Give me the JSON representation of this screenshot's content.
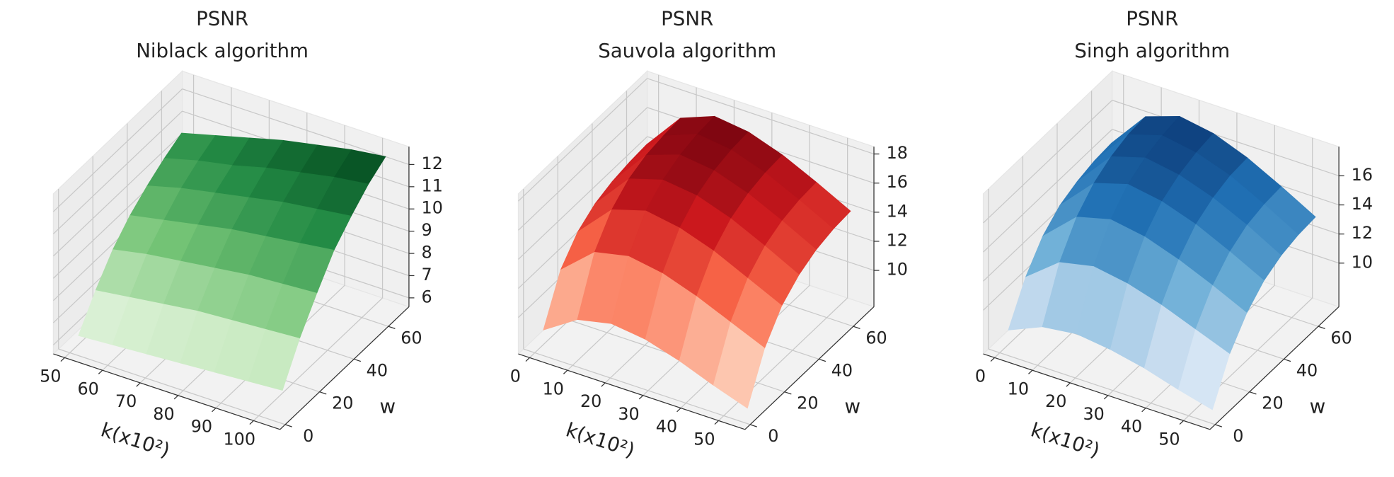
{
  "chart_data": [
    {
      "type": "surface",
      "title": "PSNR",
      "subtitle": "Niblack algorithm",
      "xlabel": "k(x10²)",
      "ylabel": "w",
      "x": [
        50,
        59,
        68,
        77,
        86,
        95,
        104
      ],
      "y": [
        5,
        15,
        25,
        35,
        45,
        55,
        65
      ],
      "z": [
        [
          6.0,
          6.1,
          6.2,
          6.3,
          6.4,
          6.5,
          6.6
        ],
        [
          7.3,
          7.5,
          7.7,
          7.9,
          8.0,
          8.1,
          8.2
        ],
        [
          8.4,
          8.7,
          8.9,
          9.1,
          9.3,
          9.4,
          9.5
        ],
        [
          9.2,
          9.5,
          9.8,
          10.1,
          10.3,
          10.5,
          10.7
        ],
        [
          9.8,
          10.2,
          10.5,
          10.8,
          11.1,
          11.3,
          11.5
        ],
        [
          10.3,
          10.7,
          11.0,
          11.4,
          11.7,
          12.0,
          12.2
        ],
        [
          10.7,
          11.1,
          11.5,
          11.9,
          12.2,
          12.5,
          12.7
        ]
      ],
      "xlim": [
        47,
        107
      ],
      "ylim": [
        -3,
        72
      ],
      "zlim": [
        5.6,
        12.8
      ],
      "xticks": [
        50,
        60,
        70,
        80,
        90,
        100
      ],
      "yticks": [
        0,
        20,
        40,
        60
      ],
      "zticks": [
        6,
        7,
        8,
        9,
        10,
        11,
        12
      ],
      "colormap": [
        "#f7fcf5",
        "#c7e9c0",
        "#74c476",
        "#238b45",
        "#00441b"
      ]
    },
    {
      "type": "surface",
      "title": "PSNR",
      "subtitle": "Sauvola algorithm",
      "xlabel": "k(x10²)",
      "ylabel": "w",
      "x": [
        0,
        9,
        18,
        27,
        36,
        45,
        54
      ],
      "y": [
        5,
        15,
        25,
        35,
        45,
        55,
        65
      ],
      "z": [
        [
          8.5,
          10.0,
          10.5,
          10.2,
          9.5,
          8.6,
          7.8
        ],
        [
          11.5,
          13.5,
          14.0,
          13.6,
          12.8,
          11.8,
          10.8
        ],
        [
          13.0,
          15.3,
          16.0,
          15.6,
          14.8,
          13.7,
          12.6
        ],
        [
          13.8,
          16.3,
          17.0,
          16.7,
          15.9,
          14.8,
          13.6
        ],
        [
          14.2,
          16.8,
          17.6,
          17.3,
          16.5,
          15.4,
          14.2
        ],
        [
          14.4,
          17.0,
          17.9,
          17.6,
          16.8,
          15.7,
          14.5
        ],
        [
          14.5,
          17.1,
          18.0,
          17.7,
          16.9,
          15.8,
          14.6
        ]
      ],
      "xlim": [
        -3,
        57
      ],
      "ylim": [
        -3,
        72
      ],
      "zlim": [
        7.5,
        18.5
      ],
      "xticks": [
        0,
        10,
        20,
        30,
        40,
        50
      ],
      "yticks": [
        0,
        20,
        40,
        60
      ],
      "zticks": [
        10,
        12,
        14,
        16,
        18
      ],
      "colormap": [
        "#fff5f0",
        "#fcbba1",
        "#fb6a4a",
        "#cb181d",
        "#67000d"
      ]
    },
    {
      "type": "surface",
      "title": "PSNR",
      "subtitle": "Singh algorithm",
      "xlabel": "k(x10²)",
      "ylabel": "w",
      "x": [
        0,
        9,
        18,
        27,
        36,
        45,
        54
      ],
      "y": [
        5,
        15,
        25,
        35,
        45,
        55,
        65
      ],
      "z": [
        [
          8.0,
          9.0,
          9.3,
          9.0,
          8.5,
          7.8,
          7.2
        ],
        [
          10.5,
          12.3,
          12.8,
          12.4,
          11.7,
          10.8,
          9.9
        ],
        [
          12.2,
          14.3,
          14.9,
          14.5,
          13.7,
          12.7,
          11.6
        ],
        [
          13.2,
          15.5,
          16.2,
          15.8,
          15.0,
          13.9,
          12.7
        ],
        [
          13.7,
          16.2,
          16.9,
          16.5,
          15.7,
          14.6,
          13.3
        ],
        [
          14.0,
          16.6,
          17.3,
          16.9,
          16.1,
          14.9,
          13.6
        ],
        [
          14.1,
          16.7,
          17.5,
          17.1,
          16.2,
          15.0,
          13.7
        ]
      ],
      "xlim": [
        -3,
        57
      ],
      "ylim": [
        -3,
        72
      ],
      "zlim": [
        7,
        18
      ],
      "xticks": [
        0,
        10,
        20,
        30,
        40,
        50
      ],
      "yticks": [
        0,
        20,
        40,
        60
      ],
      "zticks": [
        10,
        12,
        14,
        16
      ],
      "colormap": [
        "#f7fbff",
        "#c6dbef",
        "#6baed6",
        "#2171b5",
        "#08306b"
      ]
    }
  ]
}
